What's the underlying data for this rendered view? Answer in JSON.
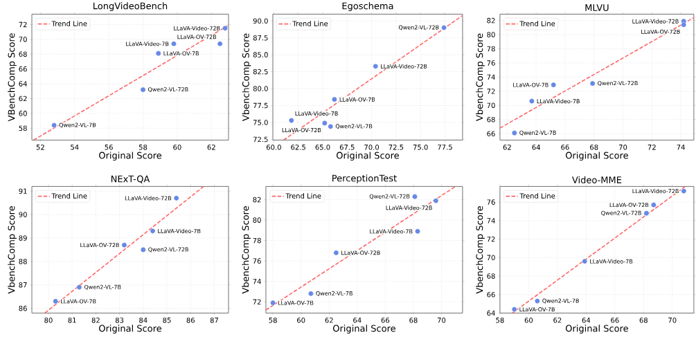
{
  "chart_data": [
    {
      "type": "scatter",
      "title": "LongVideoBench",
      "xlabel": "Original Score",
      "ylabel": "VBenchComp Score",
      "xlim": [
        51.5,
        63.0
      ],
      "ylim": [
        56.4,
        73.4
      ],
      "xticks": [
        52,
        54,
        56,
        58,
        60,
        62
      ],
      "yticks": [
        58,
        60,
        62,
        64,
        66,
        68,
        70,
        72
      ],
      "grid": true,
      "legend": "top left",
      "series": [
        {
          "name": "Trend Line",
          "type": "line",
          "color": "#ff6666",
          "line_style": "dashed",
          "marker": "none",
          "x": [
            51.6,
            63.0
          ],
          "values": [
            56.4,
            71.9
          ]
        },
        {
          "type": "scatter",
          "color": "#6688e6",
          "marker": "circle",
          "x": [
            52.8,
            58.0,
            58.9,
            59.8,
            62.5,
            62.8
          ],
          "values": [
            58.4,
            63.2,
            68.1,
            69.4,
            69.4,
            71.5
          ]
        }
      ],
      "annotations": [
        {
          "text": "Qwen2-VL-7B",
          "x": 52.8,
          "y": 58.4
        },
        {
          "text": "Qwen2-VL-72B",
          "x": 58.0,
          "y": 63.2
        },
        {
          "text": "LLaVA-OV-7B",
          "x": 58.9,
          "y": 68.1
        },
        {
          "text": "LLaVA-Video-7B",
          "x": 59.8,
          "y": 69.4
        },
        {
          "text": "LLaVA-OV-72B",
          "x": 62.5,
          "y": 69.4
        },
        {
          "text": "LLaVA-Video-72B",
          "x": 62.8,
          "y": 71.5
        }
      ]
    },
    {
      "type": "scatter",
      "title": "Egoschema",
      "xlabel": "Original Score",
      "ylabel": "VbenchComp Score",
      "xlim": [
        59.9,
        79.3
      ],
      "ylim": [
        72.4,
        91.0
      ],
      "xticks": [
        {
          "value": 60,
          "label": "60.0"
        },
        {
          "value": 62.5,
          "label": "62.5"
        },
        {
          "value": 65,
          "label": "65.0"
        },
        {
          "value": 67.5,
          "label": "67.5"
        },
        {
          "value": 70,
          "label": "70.0"
        },
        {
          "value": 72.5,
          "label": "72.5"
        },
        {
          "value": 75,
          "label": "75.0"
        },
        {
          "value": 77.5,
          "label": "77.5"
        }
      ],
      "yticks": [
        {
          "value": 72.5,
          "label": "72.5"
        },
        {
          "value": 75,
          "label": "75.0"
        },
        {
          "value": 77.5,
          "label": "77.5"
        },
        {
          "value": 80,
          "label": "80.0"
        },
        {
          "value": 82.5,
          "label": "82.5"
        },
        {
          "value": 85,
          "label": "85.0"
        },
        {
          "value": 87.5,
          "label": "87.5"
        },
        {
          "value": 90,
          "label": "90.0"
        }
      ],
      "grid": true,
      "legend": "top left",
      "series": [
        {
          "name": "Trend Line",
          "type": "line",
          "color": "#ff6666",
          "line_style": "dashed",
          "marker": "none",
          "x": [
            61.0,
            79.3
          ],
          "values": [
            72.4,
            90.8
          ]
        },
        {
          "type": "scatter",
          "color": "#6688e6",
          "marker": "circle",
          "x": [
            61.8,
            65.2,
            65.8,
            66.2,
            70.4,
            77.4
          ],
          "values": [
            75.3,
            74.9,
            74.4,
            78.4,
            83.3,
            89.0
          ]
        }
      ],
      "annotations": [
        {
          "text": "LLaVA-Video-7B",
          "x": 61.8,
          "y": 75.3
        },
        {
          "text": "LLaVA-OV-72B",
          "x": 65.2,
          "y": 74.9
        },
        {
          "text": "Qwen2-VL-7B",
          "x": 65.8,
          "y": 74.4
        },
        {
          "text": "LLaVA-OV-7B",
          "x": 66.2,
          "y": 78.4
        },
        {
          "text": "LLaVA-Video-72B",
          "x": 70.4,
          "y": 83.3
        },
        {
          "text": "Qwen2-VL-72B",
          "x": 77.4,
          "y": 89.0
        }
      ]
    },
    {
      "type": "scatter",
      "title": "MLVU",
      "xlabel": "Original Score",
      "ylabel": "VbenchComp Score",
      "xlim": [
        61.5,
        74.9
      ],
      "ylim": [
        65.1,
        82.9
      ],
      "xticks": [
        62,
        64,
        66,
        68,
        70,
        72,
        74
      ],
      "yticks": [
        66,
        68,
        70,
        72,
        74,
        76,
        78,
        80,
        82
      ],
      "grid": true,
      "legend": "top left",
      "series": [
        {
          "name": "Trend Line",
          "type": "line",
          "color": "#ff6666",
          "line_style": "dashed",
          "marker": "none",
          "x": [
            61.5,
            74.9
          ],
          "values": [
            66.8,
            82.4
          ]
        },
        {
          "type": "scatter",
          "color": "#6688e6",
          "marker": "circle",
          "x": [
            62.5,
            63.7,
            65.2,
            67.9,
            74.2,
            74.2
          ],
          "values": [
            66.1,
            70.6,
            72.9,
            73.1,
            81.9,
            81.4
          ]
        }
      ],
      "annotations": [
        {
          "text": "Qwen2-VL-7B",
          "x": 62.5,
          "y": 66.1
        },
        {
          "text": "LLaVA-Video-7B",
          "x": 63.7,
          "y": 70.6
        },
        {
          "text": "LLaVA-OV-7B",
          "x": 65.2,
          "y": 72.9
        },
        {
          "text": "Qwen2-VL-72B",
          "x": 67.9,
          "y": 73.1
        },
        {
          "text": "LLaVA-Video-72B",
          "x": 74.2,
          "y": 81.9
        },
        {
          "text": "LLaVA-OV-72B",
          "x": 74.2,
          "y": 81.4
        }
      ]
    },
    {
      "type": "scatter",
      "title": "NExT-QA",
      "xlabel": "Original Score",
      "ylabel": "VbenchComp Score",
      "xlim": [
        79.3,
        87.6
      ],
      "ylim": [
        85.8,
        91.2
      ],
      "xticks": [
        80,
        81,
        82,
        83,
        84,
        85,
        86,
        87
      ],
      "yticks": [
        86,
        87,
        88,
        89,
        90,
        91
      ],
      "grid": true,
      "legend": "top left",
      "series": [
        {
          "name": "Trend Line",
          "type": "line",
          "color": "#ff6666",
          "line_style": "dashed",
          "marker": "none",
          "x": [
            79.85,
            86.55
          ],
          "values": [
            85.8,
            91.2
          ]
        },
        {
          "type": "scatter",
          "color": "#6688e6",
          "marker": "circle",
          "x": [
            80.3,
            81.3,
            83.2,
            84.0,
            84.4,
            85.4
          ],
          "values": [
            86.3,
            86.9,
            88.7,
            88.5,
            89.3,
            90.7
          ]
        }
      ],
      "annotations": [
        {
          "text": "LLaVA-OV-7B",
          "x": 80.3,
          "y": 86.3
        },
        {
          "text": "Qwen2-VL-7B",
          "x": 81.3,
          "y": 86.9
        },
        {
          "text": "LLaVA-OV-72B",
          "x": 83.2,
          "y": 88.7
        },
        {
          "text": "Qwen2-VL-72B",
          "x": 84.0,
          "y": 88.5
        },
        {
          "text": "LLaVA-Video-7B",
          "x": 84.4,
          "y": 89.3
        },
        {
          "text": "LLaVA-Video-72B",
          "x": 85.4,
          "y": 90.7
        }
      ]
    },
    {
      "type": "scatter",
      "title": "PerceptionTest",
      "xlabel": "Original Score",
      "ylabel": "VbenchComp Score",
      "xlim": [
        57.5,
        71.5
      ],
      "ylim": [
        70.9,
        83.3
      ],
      "xticks": [
        58,
        60,
        62,
        64,
        66,
        68,
        70
      ],
      "yticks": [
        72,
        74,
        76,
        78,
        80,
        82
      ],
      "grid": true,
      "legend": "top left",
      "series": [
        {
          "name": "Trend Line",
          "type": "line",
          "color": "#ff6666",
          "line_style": "dashed",
          "marker": "none",
          "x": [
            57.5,
            71.0
          ],
          "values": [
            71.2,
            83.3
          ]
        },
        {
          "type": "scatter",
          "color": "#6688e6",
          "marker": "circle",
          "x": [
            58.0,
            60.7,
            62.5,
            68.1,
            69.6,
            68.3
          ],
          "values": [
            71.9,
            72.8,
            76.8,
            82.3,
            81.9,
            78.9
          ]
        }
      ],
      "annotations": [
        {
          "text": "LLaVA-OV-7B",
          "x": 58.0,
          "y": 71.9
        },
        {
          "text": "Qwen2-VL-7B",
          "x": 60.7,
          "y": 72.8
        },
        {
          "text": "LLaVA-OV-72B",
          "x": 62.5,
          "y": 76.8
        },
        {
          "text": "Qwen2-VL-72B",
          "x": 68.1,
          "y": 82.3
        },
        {
          "text": "LLaVA-Video-72B",
          "x": 69.6,
          "y": 81.9
        },
        {
          "text": "LLaVA-Video-7B",
          "x": 68.3,
          "y": 78.9
        }
      ]
    },
    {
      "type": "scatter",
      "title": "Video-MME",
      "xlabel": "Original Score",
      "ylabel": "VbenchComp Score",
      "xlim": [
        58.0,
        71.5
      ],
      "ylim": [
        64.0,
        77.7
      ],
      "xticks": [
        58,
        60,
        62,
        64,
        66,
        68,
        70
      ],
      "yticks": [
        64,
        66,
        68,
        70,
        72,
        74,
        76
      ],
      "grid": true,
      "legend": "top left",
      "series": [
        {
          "name": "Trend Line",
          "type": "line",
          "color": "#ff6666",
          "line_style": "dashed",
          "marker": "none",
          "x": [
            58.87,
            70.9
          ],
          "values": [
            64.0,
            77.7
          ]
        },
        {
          "type": "scatter",
          "color": "#6688e6",
          "marker": "circle",
          "x": [
            59.0,
            60.6,
            63.9,
            68.2,
            68.7,
            70.8
          ],
          "values": [
            64.4,
            65.3,
            69.6,
            74.8,
            75.7,
            77.2
          ]
        }
      ],
      "annotations": [
        {
          "text": "LLaVA-OV-7B",
          "x": 59.0,
          "y": 64.4
        },
        {
          "text": "Qwen2-VL-7B",
          "x": 60.6,
          "y": 65.3
        },
        {
          "text": "LLaVA-Video-7B",
          "x": 63.9,
          "y": 69.6
        },
        {
          "text": "Qwen2-VL-72B",
          "x": 68.2,
          "y": 74.8
        },
        {
          "text": "LLaVA-OV-72B",
          "x": 68.7,
          "y": 75.7
        },
        {
          "text": "LLaVA-Video-72B",
          "x": 70.8,
          "y": 77.2
        }
      ]
    }
  ]
}
